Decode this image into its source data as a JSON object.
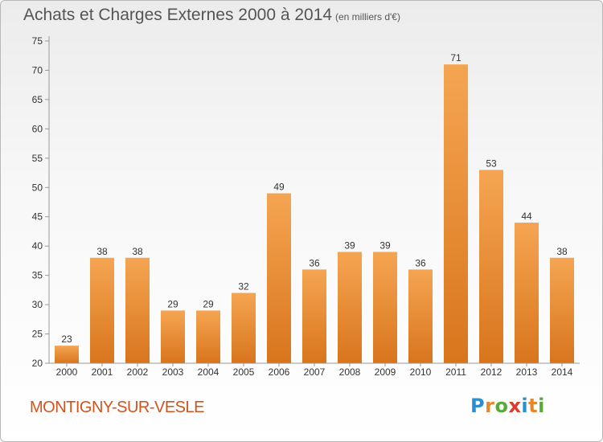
{
  "header": {
    "title": "Achats et Charges Externes 2000 à 2014",
    "unit": "(en milliers d'€)"
  },
  "footer": {
    "commune": "MONTIGNY-SUR-VESLE",
    "logo": "Proxiti"
  },
  "colors": {
    "bar_top": "#f5a552",
    "bar_bottom": "#d8751c",
    "commune_text": "#d0541c",
    "logo_letters": [
      "#2a8fd0",
      "#e8872a",
      "#5aaa3a",
      "#e03a2a",
      "#2a8fd0",
      "#e8872a",
      "#5aaa3a"
    ]
  },
  "chart_data": {
    "type": "bar",
    "title": "Achats et Charges Externes 2000 à 2014",
    "subtitle": "(en milliers d'€)",
    "categories": [
      "2000",
      "2001",
      "2002",
      "2003",
      "2004",
      "2005",
      "2006",
      "2007",
      "2008",
      "2009",
      "2010",
      "2011",
      "2012",
      "2013",
      "2014"
    ],
    "values": [
      23,
      38,
      38,
      29,
      29,
      32,
      49,
      36,
      39,
      39,
      36,
      71,
      53,
      44,
      38
    ],
    "ylim": [
      20,
      75
    ],
    "yticks": [
      20,
      25,
      30,
      35,
      40,
      45,
      50,
      55,
      60,
      65,
      70,
      75
    ],
    "grid": false,
    "data_labels": true
  }
}
